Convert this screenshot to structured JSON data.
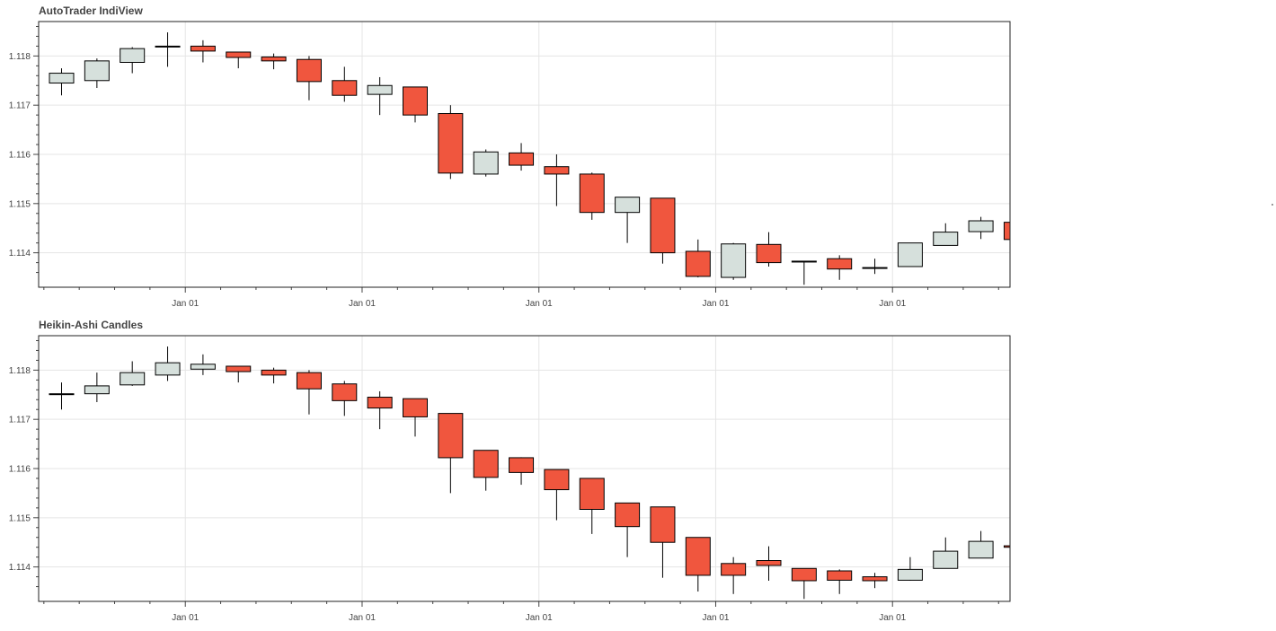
{
  "chart_data": [
    {
      "type": "candlestick",
      "title": "AutoTrader IndiView",
      "xlabel": "",
      "ylabel": "",
      "ylim": [
        1.1133,
        1.1187
      ],
      "grid": true,
      "legend": "none",
      "x_tick_labels": [
        "Jan 01",
        "Jan 01",
        "Jan 01",
        "Jan 01",
        "Jan 01"
      ],
      "x_tick_positions": [
        3.5,
        8.5,
        13.5,
        18.5,
        23.5
      ],
      "y_ticks": [
        1.114,
        1.115,
        1.116,
        1.117,
        1.118
      ],
      "y_tick_labels": [
        "1.114",
        "1.115",
        "1.116",
        "1.117",
        "1.118"
      ],
      "colors": {
        "up": "#d6e0dc",
        "down": "#f0563e",
        "outline": "#000000"
      },
      "candles": [
        {
          "open": 1.11745,
          "high": 1.11775,
          "low": 1.1172,
          "close": 1.11765
        },
        {
          "open": 1.1175,
          "high": 1.11795,
          "low": 1.11735,
          "close": 1.1179
        },
        {
          "open": 1.11787,
          "high": 1.11818,
          "low": 1.11765,
          "close": 1.11815
        },
        {
          "open": 1.1182,
          "high": 1.11848,
          "low": 1.11778,
          "close": 1.1182
        },
        {
          "open": 1.1182,
          "high": 1.11832,
          "low": 1.11787,
          "close": 1.1181
        },
        {
          "open": 1.11808,
          "high": 1.11808,
          "low": 1.11775,
          "close": 1.11797
        },
        {
          "open": 1.11798,
          "high": 1.11805,
          "low": 1.11773,
          "close": 1.1179
        },
        {
          "open": 1.11793,
          "high": 1.118,
          "low": 1.1171,
          "close": 1.11748
        },
        {
          "open": 1.1175,
          "high": 1.11778,
          "low": 1.11707,
          "close": 1.1172
        },
        {
          "open": 1.11722,
          "high": 1.11757,
          "low": 1.1168,
          "close": 1.1174
        },
        {
          "open": 1.11737,
          "high": 1.11737,
          "low": 1.11665,
          "close": 1.1168
        },
        {
          "open": 1.11683,
          "high": 1.117,
          "low": 1.1155,
          "close": 1.11562
        },
        {
          "open": 1.1156,
          "high": 1.1161,
          "low": 1.11555,
          "close": 1.11605
        },
        {
          "open": 1.11603,
          "high": 1.11623,
          "low": 1.11567,
          "close": 1.11578
        },
        {
          "open": 1.11575,
          "high": 1.116,
          "low": 1.11495,
          "close": 1.1156
        },
        {
          "open": 1.1156,
          "high": 1.11563,
          "low": 1.11467,
          "close": 1.11482
        },
        {
          "open": 1.11482,
          "high": 1.11513,
          "low": 1.1142,
          "close": 1.11513
        },
        {
          "open": 1.11511,
          "high": 1.11511,
          "low": 1.11378,
          "close": 1.114
        },
        {
          "open": 1.11403,
          "high": 1.11427,
          "low": 1.1135,
          "close": 1.11352
        },
        {
          "open": 1.1135,
          "high": 1.1142,
          "low": 1.11345,
          "close": 1.11418
        },
        {
          "open": 1.11417,
          "high": 1.11442,
          "low": 1.11372,
          "close": 1.1138
        },
        {
          "open": 1.11383,
          "high": 1.11383,
          "low": 1.11335,
          "close": 1.11383
        },
        {
          "open": 1.11388,
          "high": 1.11395,
          "low": 1.11345,
          "close": 1.11367
        },
        {
          "open": 1.1137,
          "high": 1.11388,
          "low": 1.11357,
          "close": 1.1137
        },
        {
          "open": 1.11372,
          "high": 1.1142,
          "low": 1.11372,
          "close": 1.1142
        },
        {
          "open": 1.11415,
          "high": 1.1146,
          "low": 1.11415,
          "close": 1.11442
        },
        {
          "open": 1.11443,
          "high": 1.11473,
          "low": 1.11428,
          "close": 1.11465
        },
        {
          "open": 1.11462,
          "high": 1.11462,
          "low": 1.11425,
          "close": 1.11427
        }
      ]
    },
    {
      "type": "candlestick",
      "title": "Heikin-Ashi Candles",
      "xlabel": "",
      "ylabel": "",
      "ylim": [
        1.1133,
        1.1187
      ],
      "grid": true,
      "legend": "none",
      "x_tick_labels": [
        "Jan 01",
        "Jan 01",
        "Jan 01",
        "Jan 01",
        "Jan 01"
      ],
      "x_tick_positions": [
        3.5,
        8.5,
        13.5,
        18.5,
        23.5
      ],
      "y_ticks": [
        1.114,
        1.115,
        1.116,
        1.117,
        1.118
      ],
      "y_tick_labels": [
        "1.114",
        "1.115",
        "1.116",
        "1.117",
        "1.118"
      ],
      "colors": {
        "up": "#d6e0dc",
        "down": "#f0563e",
        "outline": "#000000"
      },
      "candles": [
        {
          "open": 1.11752,
          "high": 1.11775,
          "low": 1.1172,
          "close": 1.11752
        },
        {
          "open": 1.11752,
          "high": 1.11795,
          "low": 1.11735,
          "close": 1.11768
        },
        {
          "open": 1.1177,
          "high": 1.11818,
          "low": 1.11768,
          "close": 1.11795
        },
        {
          "open": 1.1179,
          "high": 1.11848,
          "low": 1.11778,
          "close": 1.11815
        },
        {
          "open": 1.11802,
          "high": 1.11832,
          "low": 1.1179,
          "close": 1.11812
        },
        {
          "open": 1.11808,
          "high": 1.11808,
          "low": 1.11775,
          "close": 1.11797
        },
        {
          "open": 1.118,
          "high": 1.11805,
          "low": 1.11773,
          "close": 1.1179
        },
        {
          "open": 1.11795,
          "high": 1.118,
          "low": 1.1171,
          "close": 1.11762
        },
        {
          "open": 1.11772,
          "high": 1.11778,
          "low": 1.11707,
          "close": 1.11738
        },
        {
          "open": 1.11745,
          "high": 1.11757,
          "low": 1.1168,
          "close": 1.11723
        },
        {
          "open": 1.11742,
          "high": 1.11742,
          "low": 1.11665,
          "close": 1.11705
        },
        {
          "open": 1.11712,
          "high": 1.11712,
          "low": 1.1155,
          "close": 1.11622
        },
        {
          "open": 1.11637,
          "high": 1.11637,
          "low": 1.11555,
          "close": 1.11582
        },
        {
          "open": 1.11622,
          "high": 1.11623,
          "low": 1.11567,
          "close": 1.11592
        },
        {
          "open": 1.11598,
          "high": 1.11598,
          "low": 1.11495,
          "close": 1.11557
        },
        {
          "open": 1.1158,
          "high": 1.1158,
          "low": 1.11467,
          "close": 1.11517
        },
        {
          "open": 1.1153,
          "high": 1.1153,
          "low": 1.1142,
          "close": 1.11482
        },
        {
          "open": 1.11522,
          "high": 1.11522,
          "low": 1.11378,
          "close": 1.1145
        },
        {
          "open": 1.1146,
          "high": 1.1146,
          "low": 1.1135,
          "close": 1.11383
        },
        {
          "open": 1.11407,
          "high": 1.1142,
          "low": 1.11345,
          "close": 1.11383
        },
        {
          "open": 1.11413,
          "high": 1.11442,
          "low": 1.11372,
          "close": 1.11403
        },
        {
          "open": 1.11397,
          "high": 1.11397,
          "low": 1.11335,
          "close": 1.11372
        },
        {
          "open": 1.11392,
          "high": 1.11395,
          "low": 1.11345,
          "close": 1.11373
        },
        {
          "open": 1.1138,
          "high": 1.11388,
          "low": 1.11357,
          "close": 1.11372
        },
        {
          "open": 1.11373,
          "high": 1.1142,
          "low": 1.11372,
          "close": 1.11395
        },
        {
          "open": 1.11397,
          "high": 1.1146,
          "low": 1.11397,
          "close": 1.11432
        },
        {
          "open": 1.11418,
          "high": 1.11473,
          "low": 1.11418,
          "close": 1.11452
        },
        {
          "open": 1.11443,
          "high": 1.11443,
          "low": 1.1144,
          "close": 1.1144
        }
      ]
    }
  ]
}
